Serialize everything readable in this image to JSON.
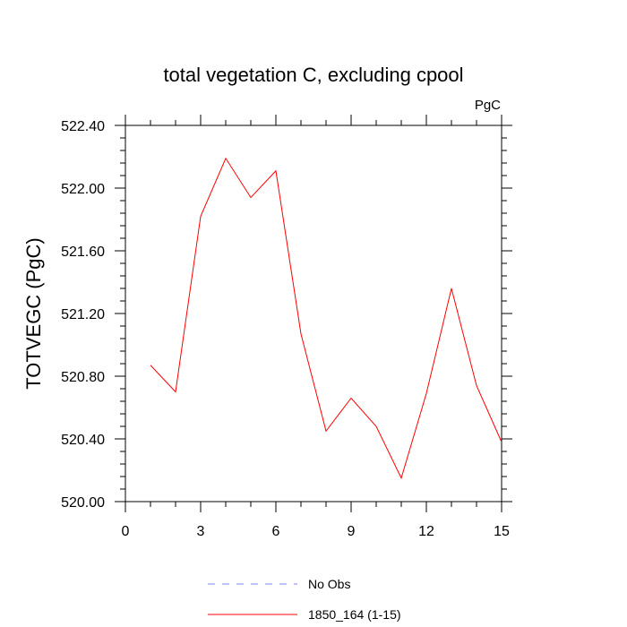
{
  "chart_data": {
    "type": "line",
    "title": "total vegetation C, excluding cpool",
    "units_label": "PgC",
    "ylabel": "TOTVEGC  (PgC)",
    "xlabel": "",
    "xlim": [
      0,
      15
    ],
    "ylim": [
      520.0,
      522.4
    ],
    "x_ticks": [
      0,
      3,
      6,
      9,
      12,
      15
    ],
    "x_tick_labels": [
      "0",
      "3",
      "6",
      "9",
      "12",
      "15"
    ],
    "y_ticks": [
      520.0,
      520.4,
      520.8,
      521.2,
      521.6,
      522.0,
      522.4
    ],
    "y_tick_labels": [
      "520.00",
      "520.40",
      "520.80",
      "521.20",
      "521.60",
      "522.00",
      "522.40"
    ],
    "series": [
      {
        "name": "1850_164 (1-15)",
        "color": "#ff0000",
        "dash": "solid",
        "x": [
          1,
          2,
          3,
          4,
          5,
          6,
          7,
          8,
          9,
          10,
          11,
          12,
          13,
          14,
          15
        ],
        "values": [
          520.87,
          520.7,
          521.82,
          522.19,
          521.94,
          522.11,
          521.07,
          520.45,
          520.66,
          520.48,
          520.15,
          520.69,
          521.36,
          520.74,
          520.38
        ]
      }
    ],
    "legend": [
      {
        "label": "No Obs",
        "color": "#8080ff",
        "dash": "dashed"
      },
      {
        "label": "1850_164 (1-15)",
        "color": "#ff0000",
        "dash": "solid"
      }
    ],
    "legend_position": "bottom-center",
    "grid": false
  }
}
